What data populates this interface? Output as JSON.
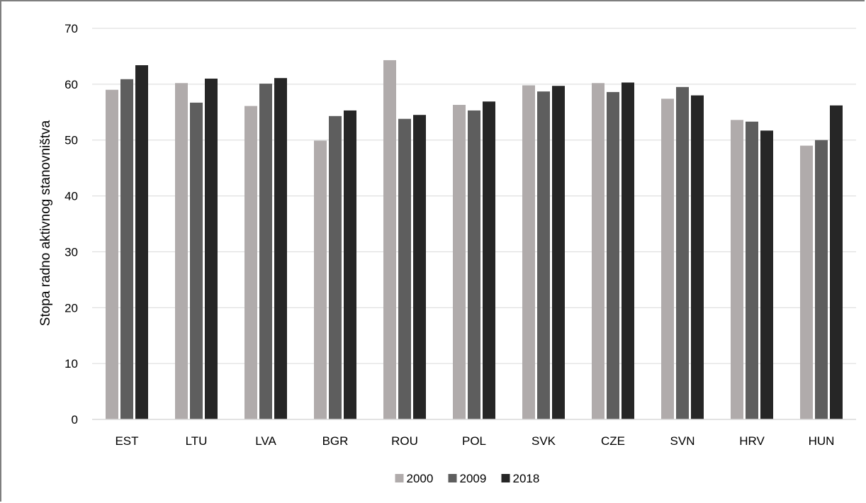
{
  "chart_data": {
    "type": "bar",
    "title": "",
    "xlabel": "",
    "ylabel": "Stopa radno aktivnog stanovništva",
    "ylim": [
      0,
      70
    ],
    "yticks": [
      0,
      10,
      20,
      30,
      40,
      50,
      60,
      70
    ],
    "grid": true,
    "legend_position": "bottom",
    "categories": [
      "EST",
      "LTU",
      "LVA",
      "BGR",
      "ROU",
      "POL",
      "SVK",
      "CZE",
      "SVN",
      "HRV",
      "HUN"
    ],
    "series": [
      {
        "name": "2000",
        "color": "#b0abab",
        "values": [
          59.0,
          60.2,
          56.1,
          49.9,
          64.3,
          56.3,
          59.8,
          60.2,
          57.4,
          53.6,
          49.0
        ]
      },
      {
        "name": "2009",
        "color": "#5e5e5e",
        "values": [
          60.9,
          56.7,
          60.1,
          54.3,
          53.8,
          55.3,
          58.7,
          58.6,
          59.5,
          53.3,
          50.0
        ]
      },
      {
        "name": "2018",
        "color": "#262626",
        "values": [
          63.4,
          61.0,
          61.1,
          55.3,
          54.5,
          56.9,
          59.7,
          60.3,
          58.0,
          51.7,
          56.2
        ]
      }
    ]
  }
}
